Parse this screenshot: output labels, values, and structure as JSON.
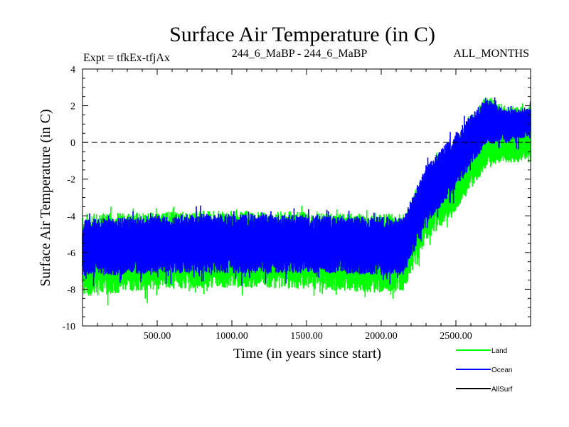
{
  "chart_data": {
    "type": "line",
    "title": "Surface Air Temperature (in C)",
    "header": {
      "left": "Expt = tfkEx-tfjAx",
      "center": "244_6_MaBP - 244_6_MaBP",
      "right": "ALL_MONTHS"
    },
    "xlabel": "Time (in years since start)",
    "ylabel": "Surface Air Temperature (in C)",
    "xlim": [
      0,
      3000
    ],
    "ylim": [
      -10,
      4
    ],
    "x_ticks": [
      500,
      1000,
      1500,
      2000,
      2500
    ],
    "x_tick_labels": [
      "500.00",
      "1000.00",
      "1500.00",
      "2000.00",
      "2500.00"
    ],
    "y_ticks": [
      -10,
      -8,
      -6,
      -4,
      -2,
      0,
      2,
      4
    ],
    "y_tick_labels": [
      "-10",
      "-8",
      "-6",
      "-4",
      "-2",
      "0",
      "2",
      "4"
    ],
    "reference_line": {
      "y": 0,
      "style": "dashed"
    },
    "grid": false,
    "legend_position": "bottom-right",
    "series": [
      {
        "name": "Land",
        "color": "#00ff00",
        "x": [
          0,
          500,
          1000,
          1500,
          2000,
          2150,
          2300,
          2500,
          2700,
          2850,
          3000
        ],
        "y_low": [
          -8.5,
          -8.1,
          -8.0,
          -8.1,
          -8.3,
          -8.2,
          -5.5,
          -3.8,
          -1.5,
          -1.2,
          -1.0
        ],
        "y_high": [
          -3.8,
          -3.7,
          -3.6,
          -3.7,
          -3.8,
          -3.8,
          -1.5,
          0.2,
          2.6,
          2.0,
          2.0
        ]
      },
      {
        "name": "Ocean",
        "color": "#0000ff",
        "x": [
          0,
          500,
          1000,
          1500,
          2000,
          2150,
          2300,
          2500,
          2700,
          2850,
          3000
        ],
        "y_low": [
          -7.4,
          -7.2,
          -7.2,
          -7.2,
          -7.3,
          -7.3,
          -4.6,
          -2.5,
          -0.2,
          0.0,
          0.3
        ],
        "y_high": [
          -4.1,
          -3.9,
          -3.8,
          -3.9,
          -4.0,
          -4.0,
          -1.2,
          0.6,
          2.5,
          1.8,
          1.9
        ]
      },
      {
        "name": "AllSurf",
        "color": "#000000",
        "x": [],
        "y_low": [],
        "y_high": []
      }
    ]
  }
}
